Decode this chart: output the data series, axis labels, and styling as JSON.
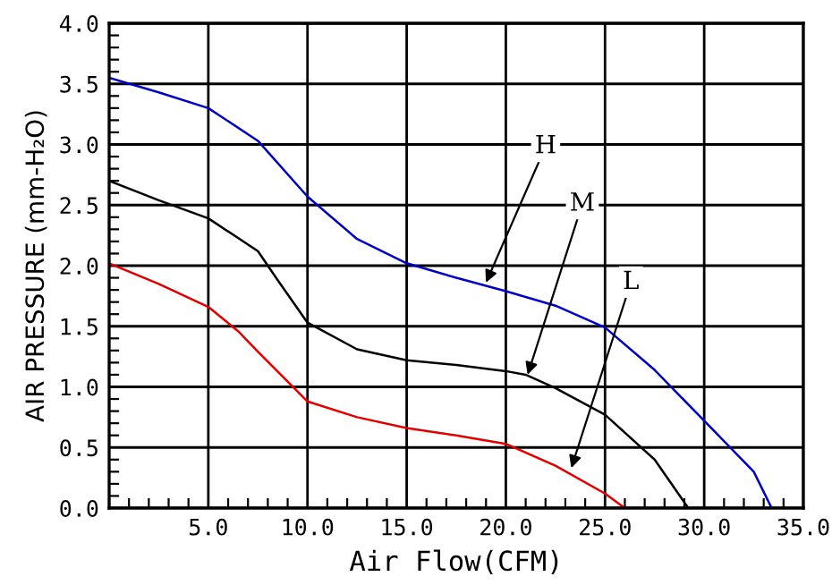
{
  "chart_data": {
    "type": "line",
    "xlabel": "Air Flow(CFM)",
    "ylabel": "AIR PRESSURE (mm-H₂O)",
    "xlim": [
      0,
      35
    ],
    "ylim": [
      0,
      4
    ],
    "xticks": [
      {
        "value": 5,
        "label": "5.0"
      },
      {
        "value": 10,
        "label": "10.0"
      },
      {
        "value": 15,
        "label": "15.0"
      },
      {
        "value": 20,
        "label": "20.0"
      },
      {
        "value": 25,
        "label": "25.0"
      },
      {
        "value": 30,
        "label": "30.0"
      },
      {
        "value": 35,
        "label": "35.0"
      }
    ],
    "yticks": [
      {
        "value": 0,
        "label": "0.0"
      },
      {
        "value": 0.5,
        "label": "0.5"
      },
      {
        "value": 1,
        "label": "1.0"
      },
      {
        "value": 1.5,
        "label": "1.5"
      },
      {
        "value": 2,
        "label": "2.0"
      },
      {
        "value": 2.5,
        "label": "2.5"
      },
      {
        "value": 3,
        "label": "3.0"
      },
      {
        "value": 3.5,
        "label": "3.5"
      },
      {
        "value": 4,
        "label": "4.0"
      }
    ],
    "grid": true,
    "legend": false,
    "line_style": "solid",
    "series": [
      {
        "color": "#0000c0",
        "x": [
          0,
          2.5,
          5,
          7.5,
          10,
          12.5,
          15,
          17.5,
          20,
          22.5,
          25,
          27.5,
          30,
          32.5,
          33.4
        ],
        "values": [
          3.55,
          3.43,
          3.3,
          3.03,
          2.57,
          2.22,
          2.02,
          1.9,
          1.79,
          1.67,
          1.49,
          1.14,
          0.72,
          0.3,
          0
        ]
      },
      {
        "color": "#000000",
        "x": [
          0,
          2.5,
          5,
          7.5,
          8.5,
          10,
          12.5,
          15,
          17.5,
          20,
          21,
          22.5,
          25,
          27.5,
          29.2
        ],
        "values": [
          2.7,
          2.54,
          2.39,
          2.12,
          1.88,
          1.53,
          1.31,
          1.22,
          1.18,
          1.13,
          1.1,
          0.99,
          0.77,
          0.4,
          0
        ]
      },
      {
        "color": "#e00000",
        "x": [
          0,
          2.5,
          5,
          6.5,
          7.5,
          10,
          12.5,
          15,
          17.5,
          20,
          22.5,
          25,
          26
        ],
        "values": [
          2.02,
          1.85,
          1.66,
          1.46,
          1.29,
          0.88,
          0.75,
          0.66,
          0.6,
          0.53,
          0.35,
          0.12,
          0
        ]
      }
    ],
    "annotations": [
      {
        "text": "H",
        "x": 19,
        "y": 1.86
      },
      {
        "text": "M",
        "x": 21.1,
        "y": 1.1
      },
      {
        "text": "L",
        "x": 23.3,
        "y": 0.33
      }
    ]
  }
}
